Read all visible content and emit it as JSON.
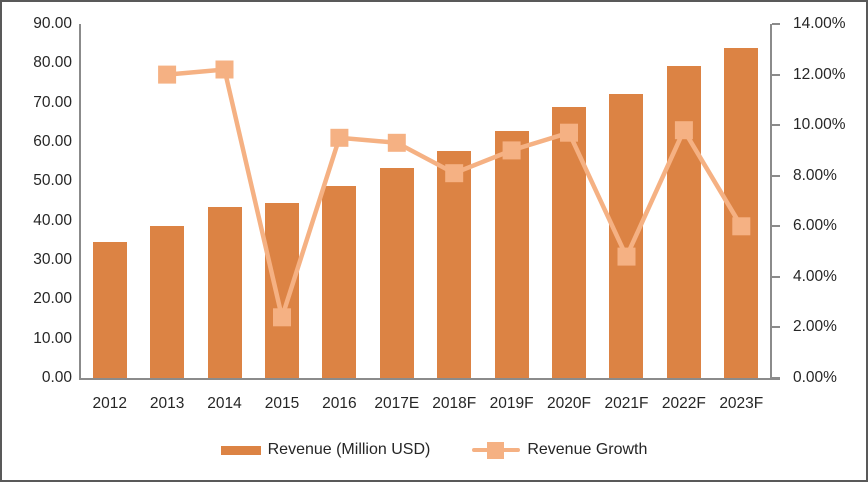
{
  "chart_data": {
    "type": "combo-bar-line",
    "categories": [
      "2012",
      "2013",
      "2014",
      "2015",
      "2016",
      "2017E",
      "2018F",
      "2019F",
      "2020F",
      "2021F",
      "2022F",
      "2023F"
    ],
    "series": [
      {
        "name": "Revenue (Million USD)",
        "type": "bar",
        "axis": "left",
        "color": "#dc8344",
        "values": [
          34.6,
          38.7,
          43.5,
          44.5,
          48.8,
          53.3,
          57.6,
          62.8,
          68.9,
          72.2,
          79.3,
          84.0
        ]
      },
      {
        "name": "Revenue Growth",
        "type": "line",
        "axis": "right",
        "color": "#f5b183",
        "marker": "square",
        "values_percent": [
          null,
          12.0,
          12.2,
          2.4,
          9.5,
          9.3,
          8.1,
          9.0,
          9.7,
          4.8,
          9.8,
          6.0
        ]
      }
    ],
    "left_axis": {
      "min": 0,
      "max": 90,
      "step": 10,
      "labels": [
        "0.00",
        "10.00",
        "20.00",
        "30.00",
        "40.00",
        "50.00",
        "60.00",
        "70.00",
        "80.00",
        "90.00"
      ]
    },
    "right_axis": {
      "min": 0,
      "max": 14,
      "step": 2,
      "labels": [
        "0.00%",
        "2.00%",
        "4.00%",
        "6.00%",
        "8.00%",
        "10.00%",
        "12.00%",
        "14.00%"
      ]
    },
    "grid": "off",
    "legend_position": "bottom",
    "title": ""
  },
  "style": {
    "bar_color": "#dc8344",
    "line_color": "#f5b183",
    "axis_color": "#8b8b8b",
    "text_color": "#262626",
    "frame_border_color": "#595959",
    "background": "#ffffff"
  }
}
